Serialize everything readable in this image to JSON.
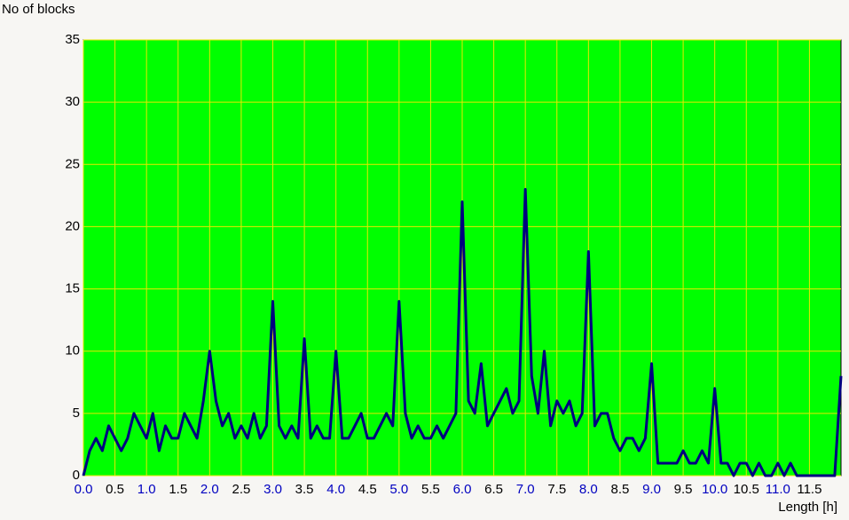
{
  "chart_data": {
    "type": "line",
    "y_label": "No of blocks",
    "x_label": "Length [h]",
    "x": [
      0.0,
      0.1,
      0.2,
      0.3,
      0.4,
      0.5,
      0.6,
      0.7,
      0.8,
      0.9,
      1.0,
      1.1,
      1.2,
      1.3,
      1.4,
      1.5,
      1.6,
      1.7,
      1.8,
      1.9,
      2.0,
      2.1,
      2.2,
      2.3,
      2.4,
      2.5,
      2.6,
      2.7,
      2.8,
      2.9,
      3.0,
      3.1,
      3.2,
      3.3,
      3.4,
      3.5,
      3.6,
      3.7,
      3.8,
      3.9,
      4.0,
      4.1,
      4.2,
      4.3,
      4.4,
      4.5,
      4.6,
      4.7,
      4.8,
      4.9,
      5.0,
      5.1,
      5.2,
      5.3,
      5.4,
      5.5,
      5.6,
      5.7,
      5.8,
      5.9,
      6.0,
      6.1,
      6.2,
      6.3,
      6.4,
      6.5,
      6.6,
      6.7,
      6.8,
      6.9,
      7.0,
      7.1,
      7.2,
      7.3,
      7.4,
      7.5,
      7.6,
      7.7,
      7.8,
      7.9,
      8.0,
      8.1,
      8.2,
      8.3,
      8.4,
      8.5,
      8.6,
      8.7,
      8.8,
      8.9,
      9.0,
      9.1,
      9.2,
      9.3,
      9.4,
      9.5,
      9.6,
      9.7,
      9.8,
      9.9,
      10.0,
      10.1,
      10.2,
      10.3,
      10.4,
      10.5,
      10.6,
      10.7,
      10.8,
      10.9,
      11.0,
      11.1,
      11.2,
      11.3,
      11.4,
      11.5,
      11.6,
      11.7,
      11.8,
      11.9,
      12.0
    ],
    "series": [
      {
        "color": "#000080",
        "values": [
          0,
          2,
          3,
          2,
          4,
          3,
          2,
          3,
          5,
          4,
          3,
          5,
          2,
          4,
          3,
          3,
          5,
          4,
          3,
          6,
          10,
          6,
          4,
          5,
          3,
          4,
          3,
          5,
          3,
          4,
          14,
          4,
          3,
          4,
          3,
          11,
          3,
          4,
          3,
          3,
          10,
          3,
          3,
          4,
          5,
          3,
          3,
          4,
          5,
          4,
          14,
          5,
          3,
          4,
          3,
          3,
          4,
          3,
          4,
          5,
          22,
          6,
          5,
          9,
          4,
          5,
          6,
          7,
          5,
          6,
          23,
          8,
          5,
          10,
          4,
          6,
          5,
          6,
          4,
          5,
          18,
          4,
          5,
          5,
          3,
          2,
          3,
          3,
          2,
          3,
          9,
          1,
          1,
          1,
          1,
          2,
          1,
          1,
          2,
          1,
          7,
          1,
          1,
          0,
          1,
          1,
          0,
          1,
          0,
          0,
          1,
          0,
          1,
          0,
          0,
          0,
          0,
          0,
          0,
          0,
          8
        ]
      }
    ],
    "xlim": [
      0,
      12
    ],
    "ylim": [
      0,
      35
    ],
    "xticks": [
      {
        "value": 0,
        "label": "0.0"
      },
      {
        "value": 0.5,
        "label": "0.5"
      },
      {
        "value": 1,
        "label": "1.0"
      },
      {
        "value": 1.5,
        "label": "1.5"
      },
      {
        "value": 2,
        "label": "2.0"
      },
      {
        "value": 2.5,
        "label": "2.5"
      },
      {
        "value": 3,
        "label": "3.0"
      },
      {
        "value": 3.5,
        "label": "3.5"
      },
      {
        "value": 4,
        "label": "4.0"
      },
      {
        "value": 4.5,
        "label": "4.5"
      },
      {
        "value": 5,
        "label": "5.0"
      },
      {
        "value": 5.5,
        "label": "5.5"
      },
      {
        "value": 6,
        "label": "6.0"
      },
      {
        "value": 6.5,
        "label": "6.5"
      },
      {
        "value": 7,
        "label": "7.0"
      },
      {
        "value": 7.5,
        "label": "7.5"
      },
      {
        "value": 8,
        "label": "8.0"
      },
      {
        "value": 8.5,
        "label": "8.5"
      },
      {
        "value": 9,
        "label": "9.0"
      },
      {
        "value": 9.5,
        "label": "9.5"
      },
      {
        "value": 10,
        "label": "10.0"
      },
      {
        "value": 10.5,
        "label": "10.5"
      },
      {
        "value": 11,
        "label": "11.0"
      },
      {
        "value": 11.5,
        "label": "11.5"
      }
    ],
    "yticks": [
      0,
      5,
      10,
      15,
      20,
      25,
      30,
      35
    ],
    "grid": true,
    "plot_background": "#00ff00"
  }
}
